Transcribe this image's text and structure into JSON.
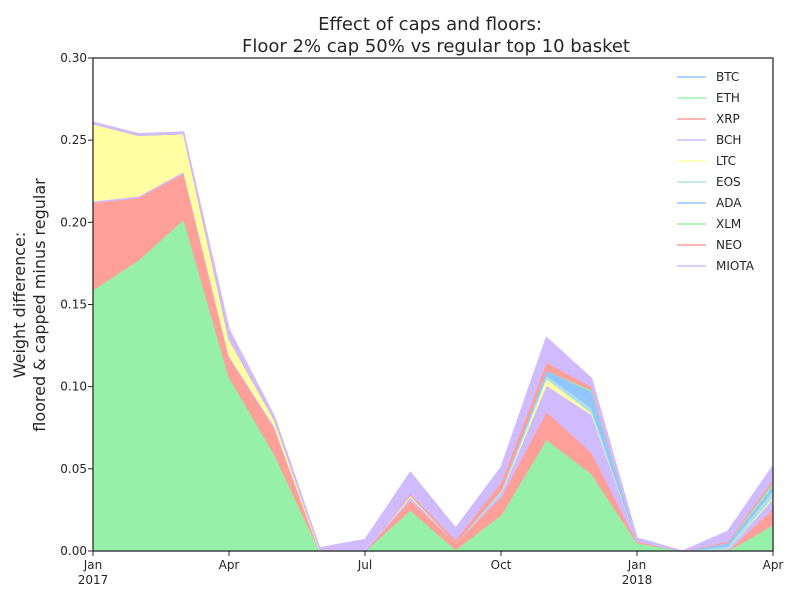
{
  "chart_data": {
    "type": "area",
    "stacked": true,
    "title": [
      "Effect of caps and floors:",
      "Floor 2% cap 50% vs regular top 10 basket"
    ],
    "xlabel": "",
    "ylabel": [
      "Weight difference:",
      "floored & capped minus regular"
    ],
    "ylim": [
      0,
      0.3
    ],
    "yticks": [
      "0.00",
      "0.05",
      "0.10",
      "0.15",
      "0.20",
      "0.25",
      "0.30"
    ],
    "xlim": [
      "2017-01",
      "2018-04"
    ],
    "xticks": [
      {
        "date": "2017-01",
        "label": "Jan",
        "sublabel": "2017"
      },
      {
        "date": "2017-04",
        "label": "Apr",
        "sublabel": ""
      },
      {
        "date": "2017-07",
        "label": "Jul",
        "sublabel": ""
      },
      {
        "date": "2017-10",
        "label": "Oct",
        "sublabel": ""
      },
      {
        "date": "2018-01",
        "label": "Jan",
        "sublabel": "2018"
      },
      {
        "date": "2018-04",
        "label": "Apr",
        "sublabel": ""
      }
    ],
    "x": [
      "2017-01",
      "2017-02",
      "2017-03",
      "2017-04",
      "2017-05",
      "2017-06",
      "2017-07",
      "2017-08",
      "2017-09",
      "2017-10",
      "2017-11",
      "2017-12",
      "2018-01",
      "2018-02",
      "2018-03",
      "2018-04"
    ],
    "legend_position": "top-right",
    "grid": false,
    "series": [
      {
        "name": "BTC",
        "color": "#92c6ff",
        "values": [
          0,
          0,
          0,
          0,
          0,
          0,
          0,
          0,
          0,
          0,
          0,
          0,
          0,
          0,
          0,
          0
        ]
      },
      {
        "name": "ETH",
        "color": "#97f0aa",
        "values": [
          0.159,
          0.177,
          0.202,
          0.106,
          0.059,
          0.0,
          0.0,
          0.025,
          0.001,
          0.022,
          0.068,
          0.047,
          0.005,
          0.0,
          0.0,
          0.016
        ]
      },
      {
        "name": "XRP",
        "color": "#ff9f9a",
        "values": [
          0.053,
          0.038,
          0.028,
          0.012,
          0.016,
          0.0,
          0.0,
          0.006,
          0.004,
          0.011,
          0.017,
          0.013,
          0.001,
          0.0,
          0.0,
          0.01
        ]
      },
      {
        "name": "BCH",
        "color": "#d0bbff",
        "values": [
          0.001,
          0.001,
          0.001,
          0.001,
          0.001,
          0.0,
          0.0,
          0.002,
          0.0,
          0.002,
          0.016,
          0.023,
          0.0,
          0.0,
          0.001,
          0.006
        ]
      },
      {
        "name": "LTC",
        "color": "#fffea3",
        "values": [
          0.047,
          0.037,
          0.023,
          0.01,
          0.004,
          0.001,
          0.0,
          0.001,
          0.0,
          0.0,
          0.004,
          0.001,
          0.0,
          0.0,
          0.0,
          0.001
        ]
      },
      {
        "name": "EOS",
        "color": "#b0e0e6",
        "values": [
          0,
          0,
          0,
          0,
          0,
          0,
          0,
          0,
          0,
          0.002,
          0.002,
          0.003,
          0.0,
          0.0,
          0.002,
          0.004
        ]
      },
      {
        "name": "ADA",
        "color": "#92c6ff",
        "values": [
          0,
          0,
          0,
          0,
          0,
          0,
          0,
          0,
          0,
          0,
          0.003,
          0.01,
          0.0,
          0.0,
          0.002,
          0.003
        ]
      },
      {
        "name": "XLM",
        "color": "#97f0aa",
        "values": [
          0,
          0,
          0,
          0,
          0,
          0,
          0,
          0,
          0,
          0,
          0.0,
          0.001,
          0.0,
          0.0,
          0.0,
          0.002
        ]
      },
      {
        "name": "NEO",
        "color": "#ff9f9a",
        "values": [
          0,
          0,
          0,
          0,
          0,
          0,
          0,
          0.001,
          0.002,
          0.005,
          0.005,
          0.002,
          0.0,
          0.0,
          0.001,
          0.002
        ]
      },
      {
        "name": "MIOTA",
        "color": "#d0bbff",
        "values": [
          0.001,
          0.001,
          0.001,
          0.006,
          0.002,
          0.001,
          0.007,
          0.013,
          0.007,
          0.009,
          0.015,
          0.005,
          0.002,
          0.0,
          0.006,
          0.008
        ]
      }
    ]
  }
}
